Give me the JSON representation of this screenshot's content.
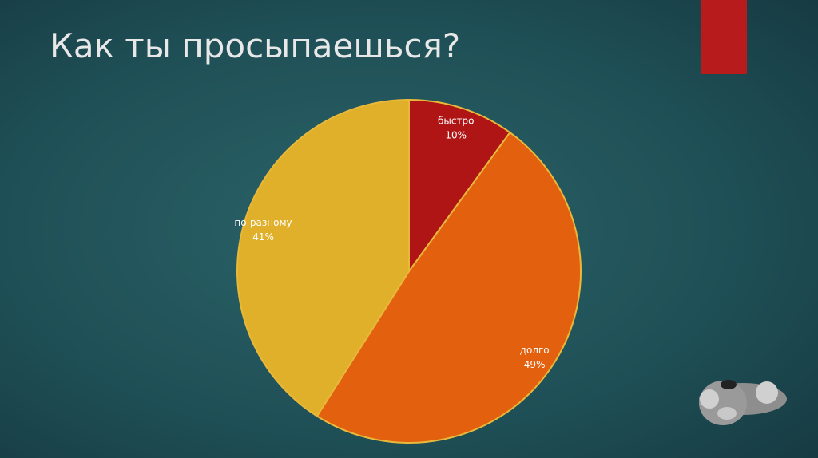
{
  "chart_data": {
    "type": "pie",
    "title": "Как ты просыпаешься?",
    "categories": [
      "быстро",
      "долго",
      "по-разному"
    ],
    "values": [
      10,
      49,
      41
    ],
    "value_labels": [
      "10%",
      "49%",
      "41%"
    ],
    "colors": [
      "#b01516",
      "#e3600f",
      "#e0b02a"
    ]
  }
}
